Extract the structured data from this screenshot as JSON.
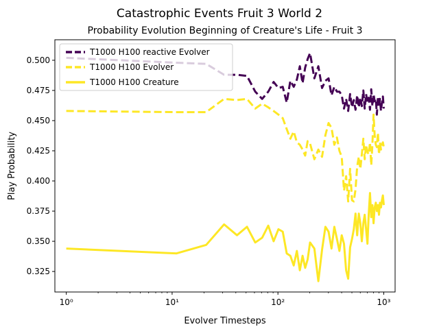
{
  "chart_data": {
    "type": "line",
    "suptitle": "Catastrophic Events Fruit 3 World 2",
    "title": "Probability Evolution Beginning of Creature's Life - Fruit 3",
    "xlabel": "Evolver Timesteps",
    "ylabel": "Play Probability",
    "xscale": "log",
    "xlim": [
      0.78,
      1280
    ],
    "ylim": [
      0.308,
      0.517
    ],
    "grid": false,
    "legend_position": "top-left",
    "yticks": [
      0.325,
      0.35,
      0.375,
      0.4,
      0.425,
      0.45,
      0.475,
      0.5
    ],
    "ytick_labels": [
      "0.325",
      "0.350",
      "0.375",
      "0.400",
      "0.425",
      "0.450",
      "0.475",
      "0.500"
    ],
    "xticks": [
      1,
      10,
      100,
      1000
    ],
    "xtick_labels": [
      "10⁰",
      "10¹",
      "10²",
      "10³"
    ],
    "series": [
      {
        "name": "T1000 H100 reactive Evolver",
        "color": "#440154",
        "style": "dashed",
        "x": [
          1,
          11,
          21,
          31,
          41,
          51,
          61,
          71,
          81,
          91,
          101,
          111,
          121,
          131,
          141,
          151,
          161,
          171,
          181,
          191,
          201,
          221,
          241,
          261,
          281,
          301,
          321,
          341,
          361,
          381,
          401,
          421,
          441,
          461,
          481,
          501,
          521,
          541,
          561,
          581,
          601,
          621,
          641,
          661,
          681,
          701,
          721,
          741,
          761,
          781,
          801,
          821,
          841,
          861,
          881,
          901,
          921,
          941,
          961,
          981,
          1000
        ],
        "y": [
          0.502,
          0.498,
          0.497,
          0.488,
          0.488,
          0.487,
          0.474,
          0.468,
          0.474,
          0.482,
          0.477,
          0.478,
          0.465,
          0.483,
          0.478,
          0.484,
          0.495,
          0.481,
          0.494,
          0.501,
          0.506,
          0.485,
          0.495,
          0.477,
          0.483,
          0.485,
          0.471,
          0.478,
          0.474,
          0.474,
          0.471,
          0.46,
          0.468,
          0.458,
          0.472,
          0.461,
          0.467,
          0.459,
          0.471,
          0.461,
          0.469,
          0.462,
          0.475,
          0.46,
          0.472,
          0.465,
          0.469,
          0.459,
          0.476,
          0.462,
          0.472,
          0.466,
          0.468,
          0.455,
          0.47,
          0.461,
          0.468,
          0.458,
          0.465,
          0.47,
          0.46
        ]
      },
      {
        "name": "T1000 H100 Evolver",
        "color": "#fde725",
        "style": "dashed",
        "x": [
          1,
          11,
          21,
          31,
          41,
          51,
          61,
          71,
          81,
          91,
          101,
          111,
          121,
          131,
          141,
          151,
          161,
          171,
          181,
          191,
          201,
          221,
          241,
          261,
          281,
          301,
          321,
          341,
          361,
          381,
          401,
          421,
          441,
          461,
          481,
          501,
          521,
          541,
          561,
          581,
          601,
          621,
          641,
          661,
          681,
          701,
          721,
          741,
          761,
          781,
          801,
          821,
          841,
          861,
          881,
          901,
          921,
          941,
          961,
          981,
          1000
        ],
        "y": [
          0.458,
          0.457,
          0.457,
          0.468,
          0.467,
          0.468,
          0.46,
          0.464,
          0.461,
          0.458,
          0.455,
          0.452,
          0.443,
          0.435,
          0.441,
          0.432,
          0.43,
          0.426,
          0.421,
          0.433,
          0.431,
          0.418,
          0.426,
          0.42,
          0.438,
          0.448,
          0.444,
          0.43,
          0.436,
          0.425,
          0.42,
          0.392,
          0.404,
          0.383,
          0.41,
          0.384,
          0.383,
          0.393,
          0.412,
          0.42,
          0.41,
          0.422,
          0.435,
          0.418,
          0.43,
          0.424,
          0.422,
          0.432,
          0.413,
          0.43,
          0.455,
          0.438,
          0.43,
          0.428,
          0.44,
          0.422,
          0.432,
          0.426,
          0.43,
          0.432,
          0.428
        ]
      },
      {
        "name": "T1000 H100 Creature",
        "color": "#fde725",
        "style": "solid",
        "x": [
          1,
          11,
          21,
          31,
          41,
          51,
          61,
          71,
          81,
          91,
          101,
          111,
          121,
          131,
          141,
          151,
          161,
          171,
          181,
          191,
          201,
          221,
          241,
          261,
          281,
          301,
          321,
          341,
          361,
          381,
          401,
          421,
          441,
          461,
          481,
          501,
          521,
          541,
          561,
          581,
          601,
          621,
          641,
          661,
          681,
          701,
          721,
          741,
          761,
          781,
          801,
          821,
          841,
          861,
          881,
          901,
          921,
          941,
          961,
          981,
          1000
        ],
        "y": [
          0.344,
          0.34,
          0.347,
          0.364,
          0.355,
          0.362,
          0.349,
          0.353,
          0.363,
          0.35,
          0.36,
          0.358,
          0.34,
          0.338,
          0.33,
          0.342,
          0.326,
          0.338,
          0.328,
          0.335,
          0.349,
          0.344,
          0.317,
          0.343,
          0.362,
          0.358,
          0.344,
          0.362,
          0.352,
          0.342,
          0.355,
          0.348,
          0.326,
          0.319,
          0.345,
          0.352,
          0.36,
          0.373,
          0.355,
          0.373,
          0.365,
          0.35,
          0.365,
          0.372,
          0.36,
          0.348,
          0.372,
          0.39,
          0.37,
          0.38,
          0.365,
          0.378,
          0.382,
          0.375,
          0.38,
          0.372,
          0.382,
          0.378,
          0.384,
          0.388,
          0.38
        ]
      }
    ]
  }
}
